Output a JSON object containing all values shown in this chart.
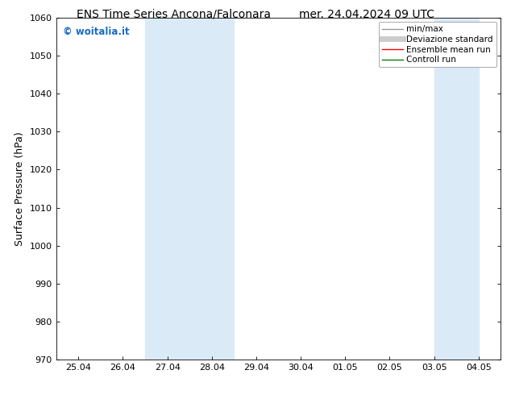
{
  "title_left": "ENS Time Series Ancona/Falconara",
  "title_right": "mer. 24.04.2024 09 UTC",
  "ylabel": "Surface Pressure (hPa)",
  "ylim": [
    970,
    1060
  ],
  "yticks": [
    970,
    980,
    990,
    1000,
    1010,
    1020,
    1030,
    1040,
    1050,
    1060
  ],
  "xtick_labels": [
    "25.04",
    "26.04",
    "27.04",
    "28.04",
    "29.04",
    "30.04",
    "01.05",
    "02.05",
    "03.05",
    "04.05"
  ],
  "shaded_regions": [
    {
      "xmin": 2.0,
      "xmax": 4.0
    },
    {
      "xmin": 8.5,
      "xmax": 9.5
    }
  ],
  "shaded_color": "#daeaf7",
  "watermark_text": "© woitalia.it",
  "watermark_color": "#1a6bc2",
  "legend_entries": [
    {
      "label": "min/max",
      "color": "#999999",
      "lw": 1.0,
      "style": "solid"
    },
    {
      "label": "Deviazione standard",
      "color": "#cccccc",
      "lw": 5,
      "style": "solid"
    },
    {
      "label": "Ensemble mean run",
      "color": "red",
      "lw": 1.0,
      "style": "solid"
    },
    {
      "label": "Controll run",
      "color": "green",
      "lw": 1.0,
      "style": "solid"
    }
  ],
  "background_color": "#ffffff",
  "title_fontsize": 10,
  "tick_fontsize": 8,
  "ylabel_fontsize": 9,
  "legend_fontsize": 7.5
}
